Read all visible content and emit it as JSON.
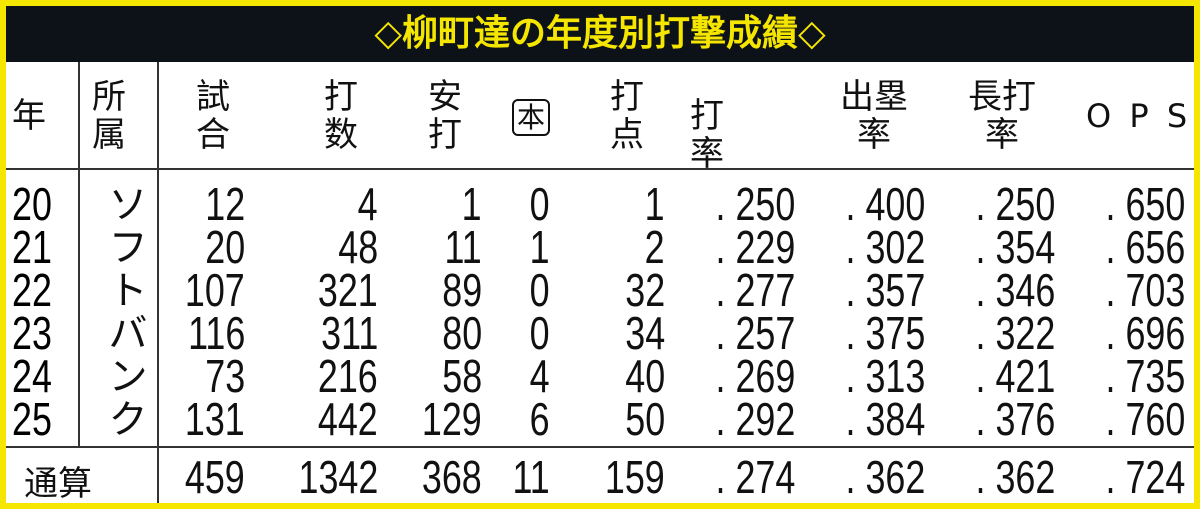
{
  "title": "◇柳町達の年度別打撃成績◇",
  "headers": [
    "年",
    "所属\n属",
    "試\n合",
    "打\n数",
    "安\n打",
    "本",
    "打\n点",
    "打率",
    "出塁\n率",
    "長打\n率",
    "ＯＰＳ"
  ],
  "team": "ソフトバンク",
  "colors": {
    "border": "#f5e600",
    "title_bg": "#0d1118",
    "title_text": "#f5e600"
  },
  "chart_data": {
    "type": "table",
    "title": "◇柳町達の年度別打撃成績◇",
    "columns": [
      "年",
      "所属",
      "試合",
      "打数",
      "安打",
      "本",
      "打点",
      "打率",
      "出塁率",
      "長打率",
      "OPS"
    ],
    "rows": [
      [
        "20",
        "ソフトバンク",
        "12",
        "4",
        "1",
        "0",
        "1",
        ".250",
        ".400",
        ".250",
        ".650"
      ],
      [
        "21",
        "ソフトバンク",
        "20",
        "48",
        "11",
        "1",
        "2",
        ".229",
        ".302",
        ".354",
        ".656"
      ],
      [
        "22",
        "ソフトバンク",
        "107",
        "321",
        "89",
        "0",
        "32",
        ".277",
        ".357",
        ".346",
        ".703"
      ],
      [
        "23",
        "ソフトバンク",
        "116",
        "311",
        "80",
        "0",
        "34",
        ".257",
        ".375",
        ".322",
        ".696"
      ],
      [
        "24",
        "ソフトバンク",
        "73",
        "216",
        "58",
        "4",
        "40",
        ".269",
        ".313",
        ".421",
        ".735"
      ],
      [
        "25",
        "ソフトバンク",
        "131",
        "442",
        "129",
        "6",
        "50",
        ".292",
        ".384",
        ".376",
        ".760"
      ]
    ],
    "total": {
      "label": "通算",
      "values": [
        "459",
        "1342",
        "368",
        "11",
        "159",
        ".274",
        ".362",
        ".362",
        ".724"
      ]
    }
  }
}
